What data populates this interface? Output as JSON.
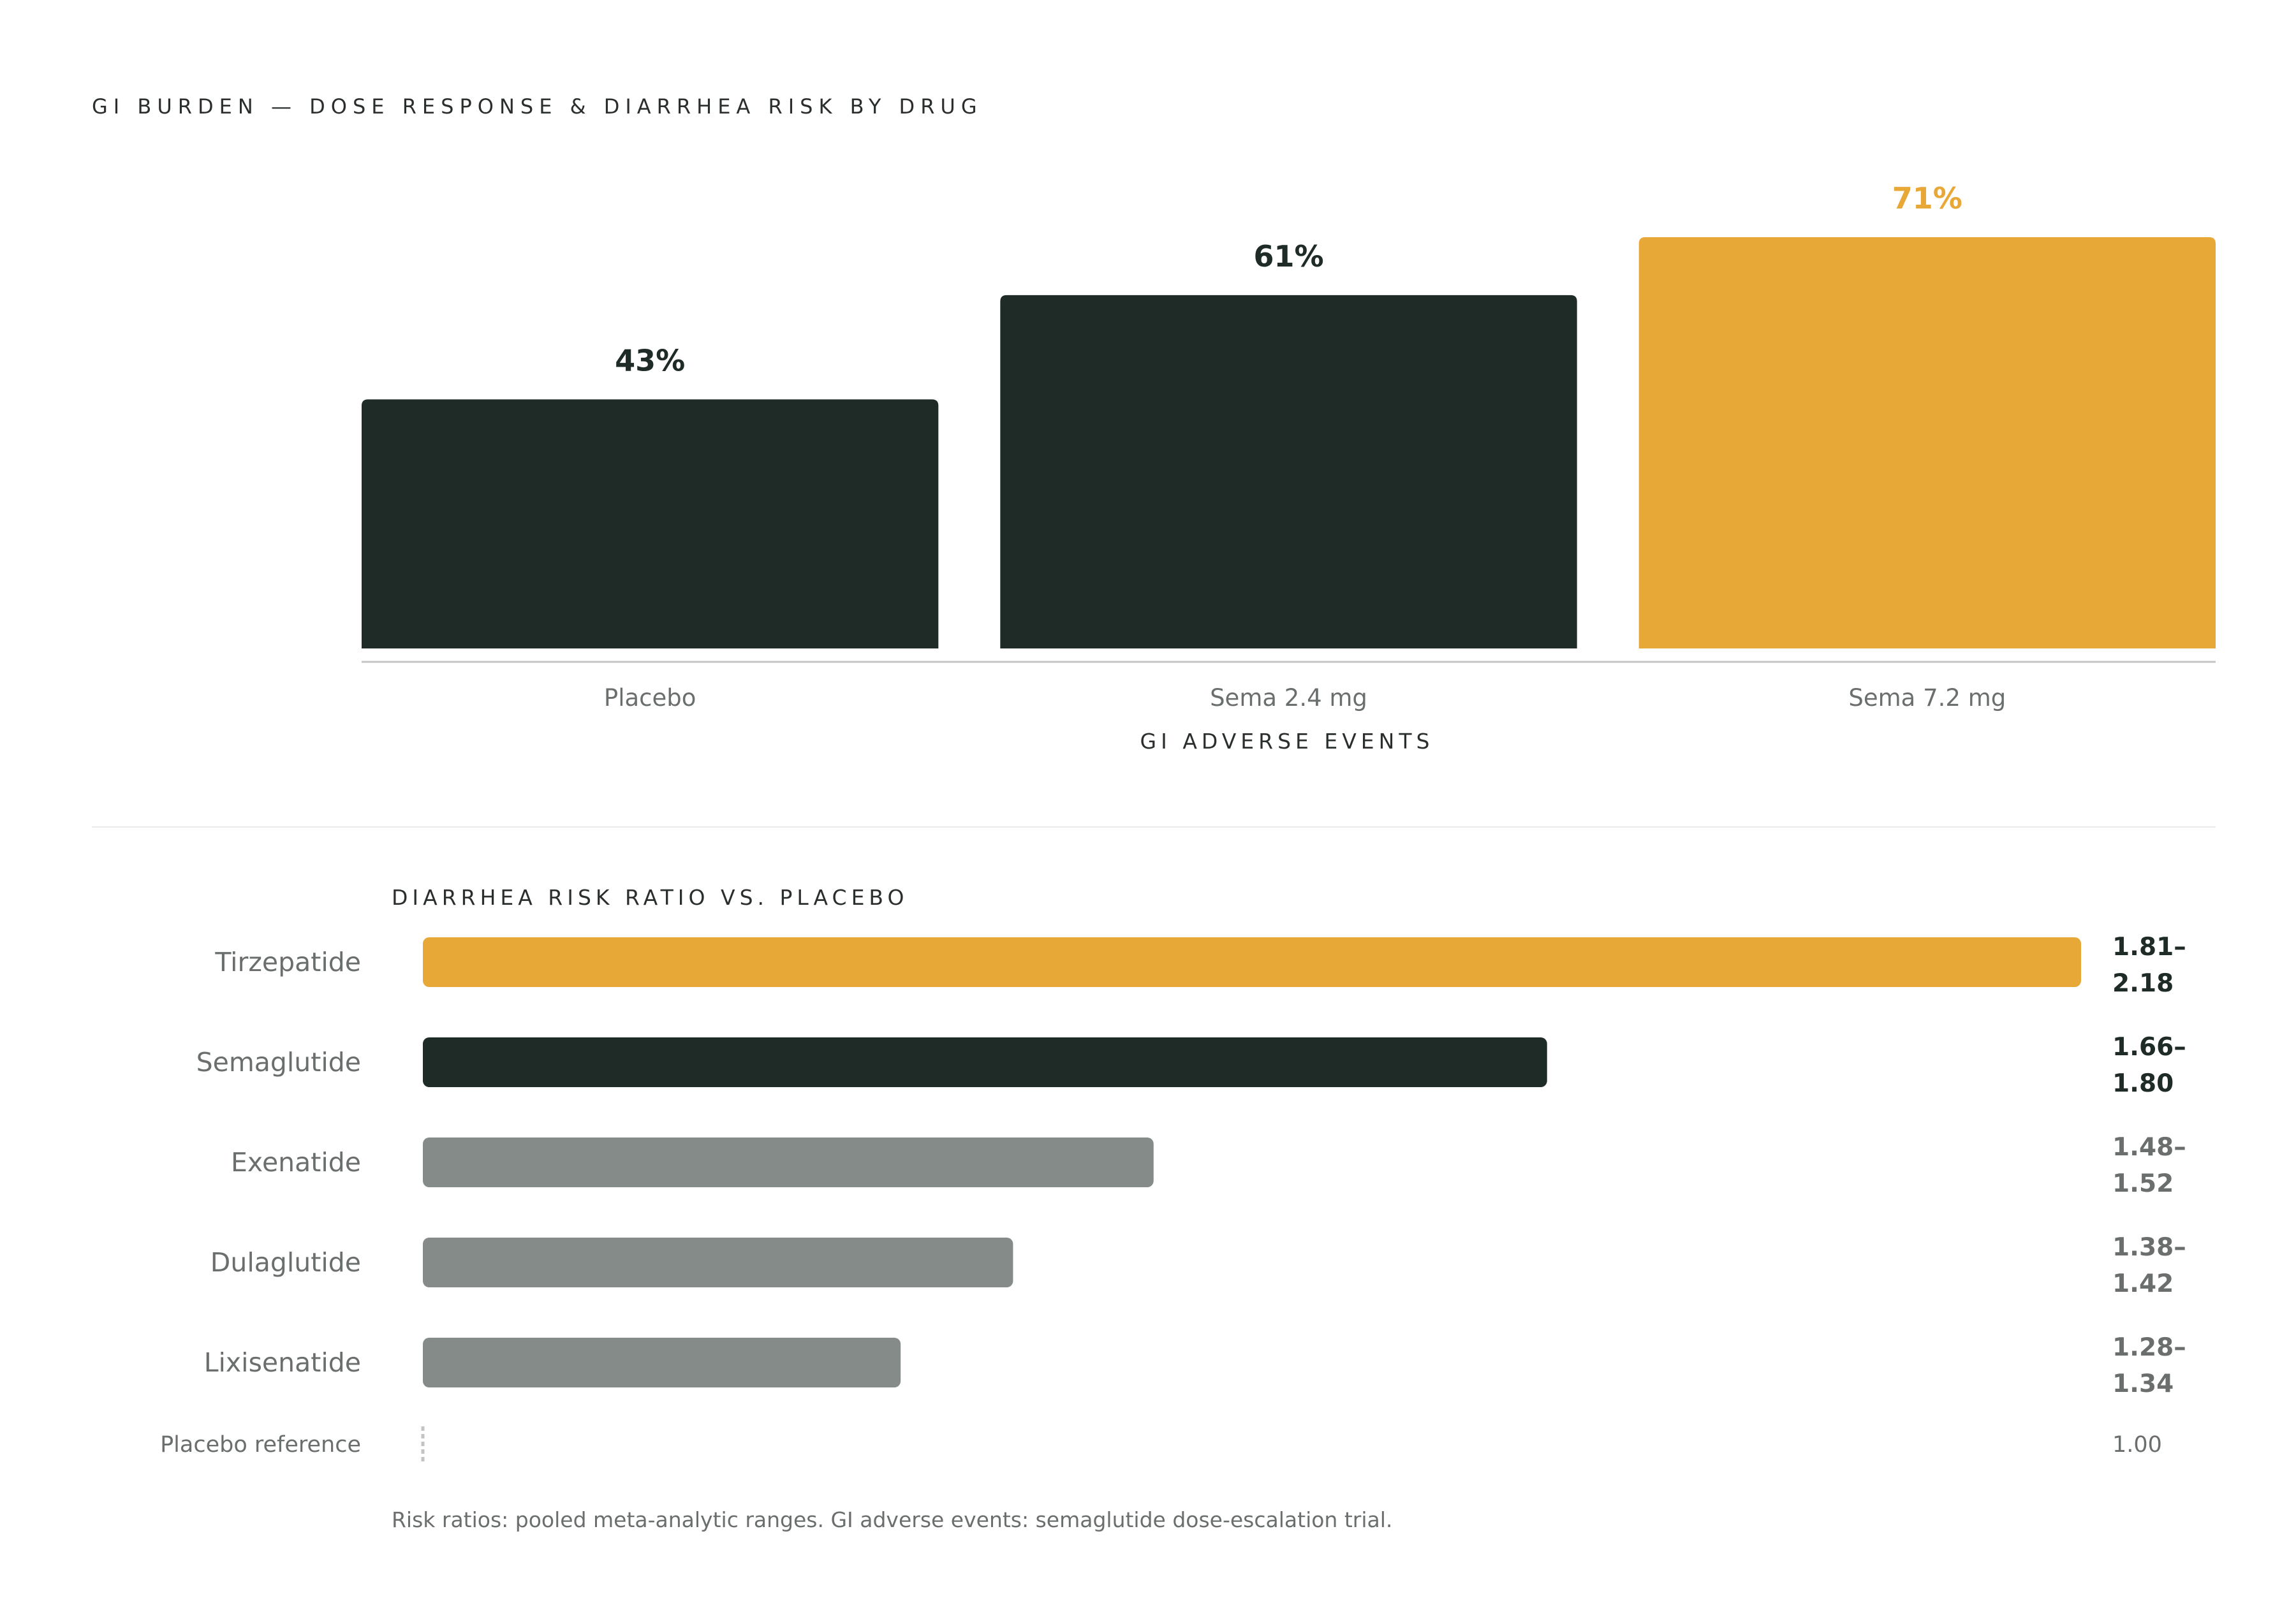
{
  "chart_data": [
    {
      "type": "bar",
      "title": "GI BURDEN — DOSE RESPONSE & DIARRHEA RISK BY DRUG",
      "xlabel": "GI ADVERSE EVENTS",
      "categories": [
        "Placebo",
        "Sema 2.4 mg",
        "Sema 7.2 mg"
      ],
      "values": [
        43,
        61,
        71
      ],
      "value_labels": [
        "43%",
        "61%",
        "71%"
      ],
      "colors": [
        "#1e2b27",
        "#1e2b27",
        "#e8a838"
      ],
      "ylim": [
        0,
        100
      ],
      "grid": false
    },
    {
      "type": "bar",
      "orientation": "horizontal",
      "title": "DIARRHEA RISK RATIO VS. PLACEBO",
      "categories": [
        "Tirzepatide",
        "Semaglutide",
        "Exenatide",
        "Dulaglutide",
        "Lixisenatide"
      ],
      "ranges": [
        [
          1.81,
          2.18
        ],
        [
          1.66,
          1.8
        ],
        [
          1.48,
          1.52
        ],
        [
          1.38,
          1.42
        ],
        [
          1.28,
          1.34
        ]
      ],
      "range_labels": [
        [
          "1.81–",
          "2.18"
        ],
        [
          "1.66–",
          "1.80"
        ],
        [
          "1.48–",
          "1.52"
        ],
        [
          "1.38–",
          "1.42"
        ],
        [
          "1.28–",
          "1.34"
        ]
      ],
      "colors": [
        "#e8a838",
        "#1e2b27",
        "#858b88",
        "#858b88",
        "#858b88"
      ],
      "label_colors": [
        "#1e2b27",
        "#1e2b27",
        "#6a6f6d",
        "#6a6f6d",
        "#6a6f6d"
      ],
      "reference": {
        "label": "Placebo reference",
        "value": 1.0,
        "value_label": "1.00"
      },
      "xlim": [
        1.0,
        2.18
      ],
      "footnote": "Risk ratios: pooled meta-analytic ranges. GI adverse events: semaglutide dose-escalation trial."
    }
  ]
}
